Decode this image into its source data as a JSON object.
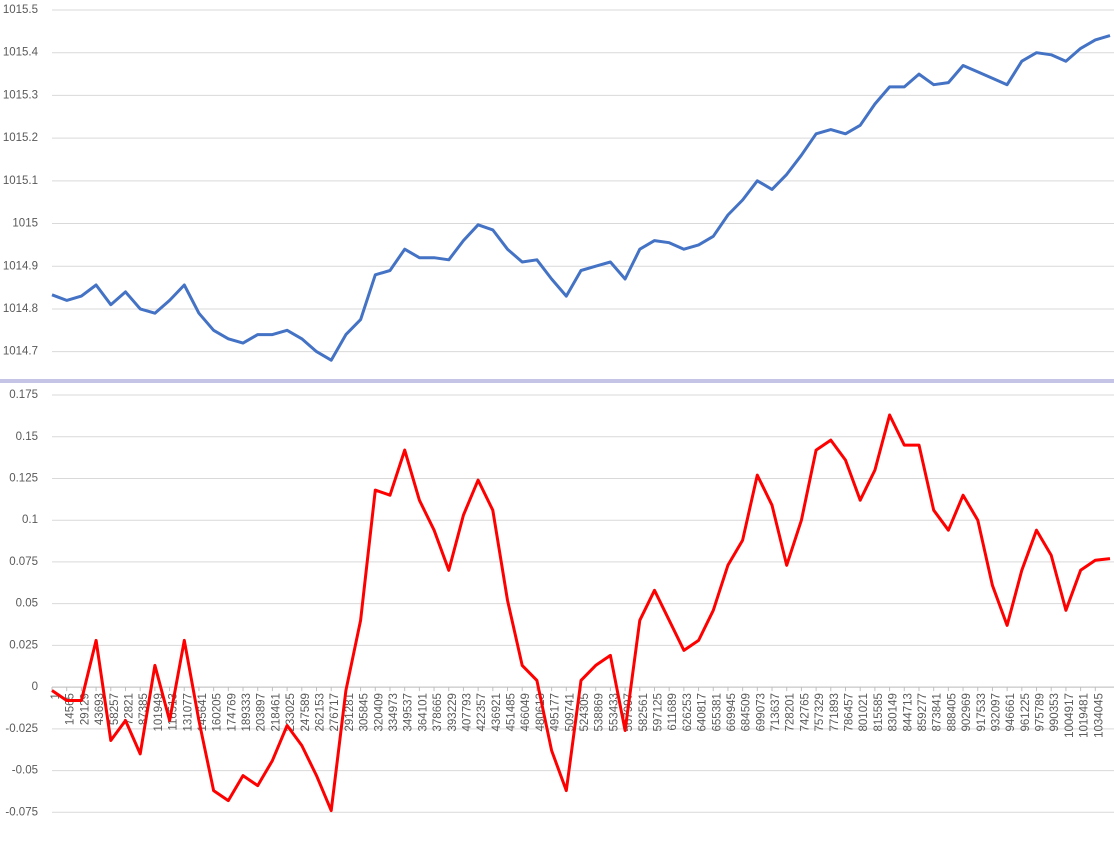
{
  "chart_data": [
    {
      "type": "line",
      "x": [
        1,
        14565,
        29129,
        43693,
        58257,
        72821,
        87385,
        101949,
        116513,
        131077,
        145641,
        160205,
        174769,
        189333,
        203897,
        218461,
        233025,
        247589,
        262153,
        276717,
        291281,
        305845,
        320409,
        334973,
        349537,
        364101,
        378665,
        393229,
        407793,
        422357,
        436921,
        451485,
        466049,
        480613,
        495177,
        509741,
        524305,
        538869,
        553433,
        567997,
        582561,
        597125,
        611689,
        626253,
        640817,
        655381,
        669945,
        684509,
        699073,
        713637,
        728201,
        742765,
        757329,
        771893,
        786457,
        801021,
        815585,
        830149,
        844713,
        859277,
        873841,
        888405,
        902969,
        917533,
        932097,
        946661,
        961225,
        975789,
        990353,
        1004917,
        1019481,
        1034045,
        1048609
      ],
      "series": [
        {
          "color": "#4472c4",
          "values": [
            1014.833,
            1014.82,
            1014.83,
            1014.856,
            1014.81,
            1014.84,
            1014.8,
            1014.79,
            1014.82,
            1014.856,
            1014.79,
            1014.75,
            1014.73,
            1014.72,
            1014.74,
            1014.74,
            1014.75,
            1014.73,
            1014.7,
            1014.68,
            1014.74,
            1014.775,
            1014.88,
            1014.89,
            1014.94,
            1014.92,
            1014.92,
            1014.915,
            1014.96,
            1014.997,
            1014.985,
            1014.94,
            1014.91,
            1014.915,
            1014.87,
            1014.83,
            1014.89,
            1014.9,
            1014.91,
            1014.87,
            1014.94,
            1014.96,
            1014.955,
            1014.94,
            1014.95,
            1014.97,
            1015.02,
            1015.055,
            1015.1,
            1015.08,
            1015.115,
            1015.16,
            1015.21,
            1015.22,
            1015.21,
            1015.23,
            1015.28,
            1015.32,
            1015.32,
            1015.35,
            1015.325,
            1015.33,
            1015.37,
            1015.355,
            1015.34,
            1015.325,
            1015.38,
            1015.4,
            1015.395,
            1015.38,
            1015.41,
            1015.43,
            1015.44
          ]
        }
      ],
      "xlim": [
        1,
        1048609
      ],
      "ylim": [
        1014.65,
        1015.5
      ],
      "yticks": [
        1014.7,
        1014.8,
        1014.9,
        1015,
        1015.1,
        1015.2,
        1015.3,
        1015.4,
        1015.5
      ],
      "grid": true
    },
    {
      "type": "line",
      "x": [
        1,
        14565,
        29129,
        43693,
        58257,
        72821,
        87385,
        101949,
        116513,
        131077,
        145641,
        160205,
        174769,
        189333,
        203897,
        218461,
        233025,
        247589,
        262153,
        276717,
        291281,
        305845,
        320409,
        334973,
        349537,
        364101,
        378665,
        393229,
        407793,
        422357,
        436921,
        451485,
        466049,
        480613,
        495177,
        509741,
        524305,
        538869,
        553433,
        567997,
        582561,
        597125,
        611689,
        626253,
        640817,
        655381,
        669945,
        684509,
        699073,
        713637,
        728201,
        742765,
        757329,
        771893,
        786457,
        801021,
        815585,
        830149,
        844713,
        859277,
        873841,
        888405,
        902969,
        917533,
        932097,
        946661,
        961225,
        975789,
        990353,
        1004917,
        1019481,
        1034045,
        1048609
      ],
      "series": [
        {
          "color": "#ff0000",
          "values": [
            -0.002,
            -0.008,
            -0.008,
            0.028,
            -0.032,
            -0.02,
            -0.04,
            0.013,
            -0.02,
            0.028,
            -0.02,
            -0.062,
            -0.068,
            -0.053,
            -0.059,
            -0.044,
            -0.023,
            -0.035,
            -0.053,
            -0.074,
            -0.002,
            0.04,
            0.118,
            0.115,
            0.142,
            0.112,
            0.094,
            0.07,
            0.103,
            0.124,
            0.106,
            0.052,
            0.013,
            0.004,
            -0.038,
            -0.062,
            0.004,
            0.013,
            0.019,
            -0.026,
            0.04,
            0.058,
            0.04,
            0.022,
            0.028,
            0.046,
            0.073,
            0.088,
            0.127,
            0.109,
            0.073,
            0.1,
            0.142,
            0.148,
            0.136,
            0.112,
            0.13,
            0.163,
            0.145,
            0.145,
            0.106,
            0.094,
            0.115,
            0.1,
            0.061,
            0.037,
            0.07,
            0.094,
            0.079,
            0.046,
            0.07,
            0.076,
            0.077
          ]
        }
      ],
      "xlim": [
        1,
        1048609
      ],
      "xticks": [
        1,
        14565,
        29129,
        43693,
        58257,
        72821,
        87385,
        101949,
        116513,
        131077,
        145641,
        160205,
        174769,
        189333,
        203897,
        218461,
        233025,
        247589,
        262153,
        276717,
        291281,
        305845,
        320409,
        334973,
        349537,
        364101,
        378665,
        393229,
        407793,
        422357,
        436921,
        451485,
        466049,
        480613,
        495177,
        509741,
        524305,
        538869,
        553433,
        567997,
        582561,
        597125,
        611689,
        626253,
        640817,
        655381,
        669945,
        684509,
        699073,
        713637,
        728201,
        742765,
        757329,
        771893,
        786457,
        801021,
        815585,
        830149,
        844713,
        859277,
        873841,
        888405,
        902969,
        917533,
        932097,
        946661,
        961225,
        975789,
        990353,
        1004917,
        1019481,
        1034045
      ],
      "ylim": [
        -0.085,
        0.175
      ],
      "yticks": [
        -0.075,
        -0.05,
        -0.025,
        0,
        0.025,
        0.05,
        0.075,
        0.1,
        0.125,
        0.15,
        0.175
      ],
      "grid": true
    }
  ]
}
